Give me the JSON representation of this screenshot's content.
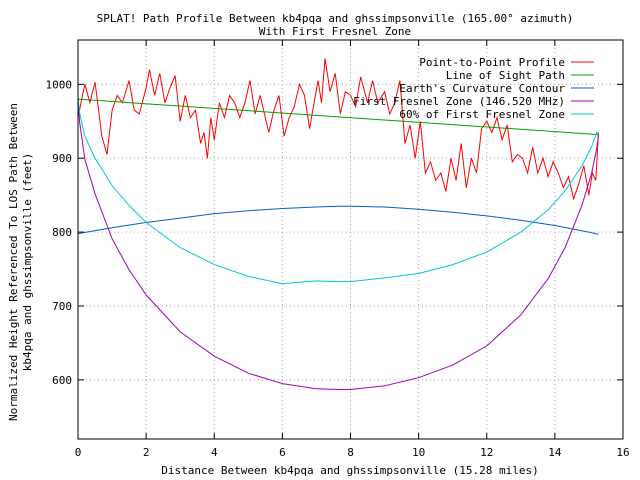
{
  "chart_data": {
    "type": "line",
    "title": "SPLAT! Path Profile Between kb4pqa and ghssimpsonville (165.00° azimuth)",
    "subtitle": "With First Fresnel Zone",
    "xlabel": "Distance Between kb4pqa and ghssimpsonville (15.28 miles)",
    "ylabel_line1": "Normalized Height Referenced To LOS Path Between",
    "ylabel_line2": "kb4pqa and ghssimpsonville (feet)",
    "xlim": [
      0,
      16
    ],
    "ylim": [
      520,
      1060
    ],
    "x_ticks": [
      0,
      2,
      4,
      6,
      8,
      10,
      12,
      14,
      16
    ],
    "y_ticks": [
      600,
      700,
      800,
      900,
      1000
    ],
    "grid": true,
    "legend_position": "top-right",
    "series": [
      {
        "name": "Point-to-Point Profile",
        "color": "#ff0000",
        "x": [
          0,
          0.2,
          0.35,
          0.5,
          0.62,
          0.7,
          0.85,
          1.0,
          1.15,
          1.3,
          1.5,
          1.65,
          1.8,
          2.0,
          2.1,
          2.25,
          2.4,
          2.55,
          2.7,
          2.85,
          3.0,
          3.15,
          3.3,
          3.45,
          3.6,
          3.7,
          3.8,
          3.9,
          4.0,
          4.15,
          4.3,
          4.45,
          4.6,
          4.75,
          4.9,
          5.05,
          5.2,
          5.35,
          5.5,
          5.6,
          5.75,
          5.9,
          6.05,
          6.2,
          6.35,
          6.5,
          6.65,
          6.8,
          6.95,
          7.05,
          7.15,
          7.25,
          7.4,
          7.55,
          7.7,
          7.85,
          8.0,
          8.15,
          8.3,
          8.5,
          8.65,
          8.8,
          9.0,
          9.15,
          9.3,
          9.45,
          9.6,
          9.75,
          9.9,
          10.05,
          10.2,
          10.35,
          10.5,
          10.65,
          10.8,
          10.95,
          11.1,
          11.25,
          11.4,
          11.55,
          11.7,
          11.85,
          12.0,
          12.15,
          12.3,
          12.45,
          12.6,
          12.75,
          12.9,
          13.05,
          13.2,
          13.35,
          13.5,
          13.65,
          13.8,
          13.95,
          14.1,
          14.25,
          14.4,
          14.55,
          14.7,
          14.85,
          15.0,
          15.1,
          15.2,
          15.28
        ],
        "y": [
          955,
          1000,
          975,
          1003,
          960,
          930,
          905,
          965,
          985,
          975,
          1005,
          965,
          960,
          995,
          1020,
          985,
          1015,
          975,
          995,
          1012,
          950,
          985,
          955,
          965,
          920,
          935,
          900,
          955,
          925,
          975,
          955,
          985,
          975,
          955,
          975,
          1005,
          960,
          985,
          955,
          935,
          965,
          985,
          930,
          955,
          970,
          1000,
          985,
          940,
          980,
          1005,
          975,
          1035,
          990,
          1015,
          960,
          990,
          985,
          970,
          1010,
          975,
          1005,
          975,
          990,
          960,
          975,
          1005,
          920,
          945,
          900,
          950,
          880,
          895,
          870,
          880,
          855,
          900,
          870,
          920,
          860,
          900,
          880,
          940,
          950,
          935,
          955,
          925,
          945,
          895,
          905,
          900,
          880,
          915,
          880,
          900,
          875,
          895,
          880,
          860,
          875,
          845,
          865,
          890,
          850,
          880,
          870,
          935
        ]
      },
      {
        "name": "Line of Sight Path",
        "color": "#00a000",
        "x": [
          0,
          15.28
        ],
        "y": [
          980,
          932
        ]
      },
      {
        "name": "Earth's Curvature Contour",
        "color": "#0060c0",
        "x": [
          0,
          1,
          2,
          3,
          4,
          5,
          6,
          7,
          7.64,
          8,
          9,
          10,
          11,
          12,
          13,
          14,
          15,
          15.28
        ],
        "y": [
          798,
          806,
          813,
          819,
          825,
          829,
          832,
          834,
          835,
          835,
          834,
          831,
          827,
          822,
          816,
          809,
          800,
          797
        ]
      },
      {
        "name": "First Fresnel Zone (146.520 MHz)",
        "color": "#a000c0",
        "x": [
          0,
          0.05,
          0.2,
          0.5,
          1,
          1.5,
          2,
          3,
          4,
          5,
          6,
          7,
          7.64,
          8,
          9,
          10,
          11,
          12,
          13,
          13.8,
          14.3,
          14.8,
          15.08,
          15.23,
          15.28
        ],
        "y": [
          980,
          948,
          899,
          852,
          791,
          749,
          715,
          665,
          632,
          609,
          595,
          588,
          587,
          587,
          592,
          603,
          620,
          646,
          688,
          737,
          779,
          837,
          880,
          914,
          932
        ]
      },
      {
        "name": "60% of First Fresnel Zone",
        "color": "#00c8d8",
        "x": [
          0,
          0.05,
          0.2,
          0.5,
          1,
          1.5,
          2,
          3,
          4,
          5,
          6,
          7,
          7.64,
          8,
          9,
          10,
          11,
          12,
          13,
          13.8,
          14.3,
          14.8,
          15.08,
          15.23,
          15.28
        ],
        "y": [
          980,
          961,
          930,
          900,
          863,
          836,
          813,
          779,
          756,
          740,
          730,
          734,
          733,
          733,
          738,
          744,
          756,
          773,
          800,
          830,
          856,
          890,
          916,
          935,
          932
        ]
      }
    ]
  }
}
